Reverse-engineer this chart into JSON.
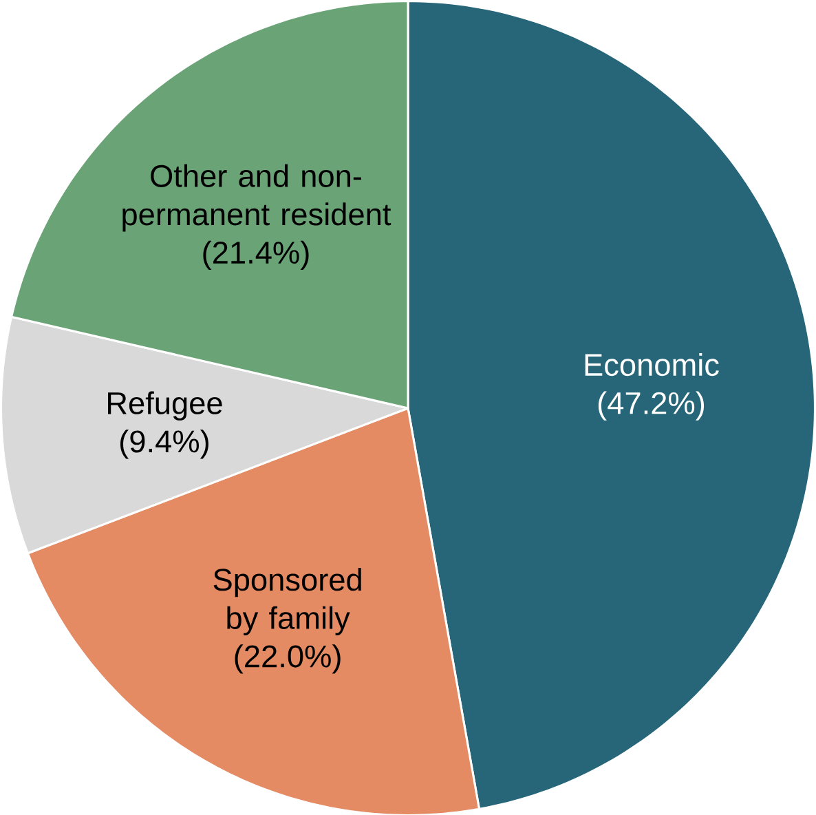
{
  "chart_data": {
    "type": "pie",
    "categories": [
      "Economic",
      "Sponsored by family",
      "Refugee",
      "Other and non-permanent resident"
    ],
    "values": [
      47.2,
      22.0,
      9.4,
      21.4
    ],
    "colors": [
      "#276678",
      "#e48b63",
      "#d9d9d9",
      "#6aa376"
    ],
    "value_labels": [
      "(47.2%)",
      "(22.0%)",
      "(9.4%)",
      "(21.4%)"
    ]
  }
}
